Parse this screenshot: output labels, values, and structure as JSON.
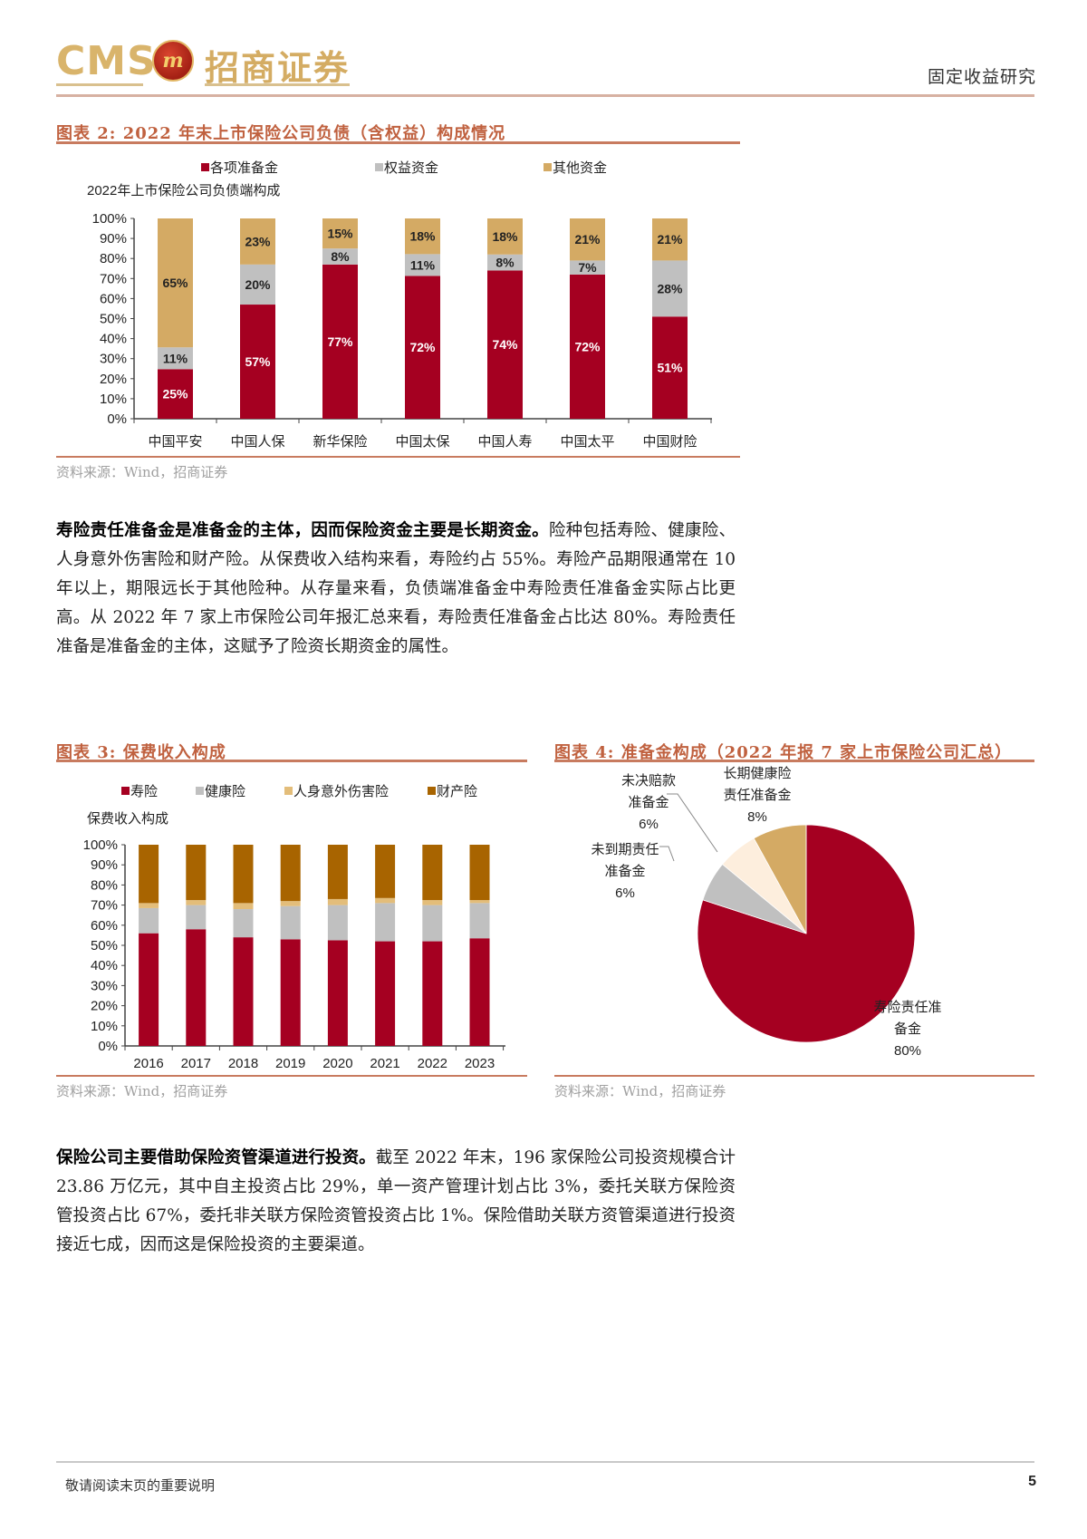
{
  "header": {
    "logo_latin": "CMS",
    "logo_badge": "m",
    "logo_cn": "招商证券",
    "section": "固定收益研究"
  },
  "figure2": {
    "title": "图表 2: 2022 年末上市保险公司负债（含权益）构成情况",
    "source": "资料来源：Wind，招商证券"
  },
  "paragraph1": {
    "lead": "寿险责任准备金是准备金的主体，因而保险资金主要是长期资金。",
    "text": "险种包括寿险、健康险、人身意外伤害险和财产险。从保费收入结构来看，寿险约占 55%。寿险产品期限通常在 10 年以上，期限远长于其他险种。从存量来看，负债端准备金中寿险责任准备金实际占比更高。从 2022 年 7 家上市保险公司年报汇总来看，寿险责任准备金占比达 80%。寿险责任准备是准备金的主体，这赋予了险资长期资金的属性。"
  },
  "figure3": {
    "title": "图表 3: 保费收入构成",
    "source": "资料来源：Wind，招商证券"
  },
  "figure4": {
    "title": "图表 4: 准备金构成（2022 年报 7 家上市保险公司汇总）",
    "source": "资料来源：Wind，招商证券"
  },
  "paragraph2": {
    "lead": "保险公司主要借助保险资管渠道进行投资。",
    "text": "截至 2022 年末，196 家保险公司投资规模合计 23.86 万亿元，其中自主投资占比 29%，单一资产管理计划占比 3%，委托关联方保险资管投资占比 67%，委托非关联方保险资管投资占比 1%。保险借助关联方资管渠道进行投资接近七成，因而这是保险投资的主要渠道。"
  },
  "footer": {
    "disclaimer": "敬请阅读末页的重要说明",
    "page_number": "5"
  },
  "colors": {
    "red": "#a50021",
    "gray": "#c0c0c0",
    "tan": "#d4aa64",
    "light_tan": "#e3bd7a",
    "brown": "#a86400",
    "cream": "#fdeedd",
    "accent": "#c0613f"
  },
  "chart_data": [
    {
      "type": "bar",
      "stacked": true,
      "title": "2022年上市保险公司负债端构成",
      "categories": [
        "中国平安",
        "中国人保",
        "新华保险",
        "中国太保",
        "中国人寿",
        "中国太平",
        "中国财险"
      ],
      "series": [
        {
          "name": "各项准备金",
          "color": "#a50021",
          "values": [
            25,
            57,
            77,
            72,
            74,
            72,
            51
          ]
        },
        {
          "name": "权益资金",
          "color": "#c0c0c0",
          "values": [
            11,
            20,
            8,
            11,
            8,
            7,
            28
          ]
        },
        {
          "name": "其他资金",
          "color": "#d4aa64",
          "values": [
            65,
            23,
            15,
            18,
            18,
            21,
            21
          ]
        }
      ],
      "yticks": [
        "0%",
        "10%",
        "20%",
        "30%",
        "40%",
        "50%",
        "60%",
        "70%",
        "80%",
        "90%",
        "100%"
      ],
      "ylim": [
        0,
        100
      ],
      "legend_position": "top",
      "grid": false
    },
    {
      "type": "bar",
      "stacked": true,
      "title": "保费收入构成",
      "categories": [
        "2016",
        "2017",
        "2018",
        "2019",
        "2020",
        "2021",
        "2022",
        "2023"
      ],
      "series": [
        {
          "name": "寿险",
          "color": "#a50021",
          "values": [
            56,
            58,
            54,
            53,
            52.5,
            52,
            52,
            53.5
          ]
        },
        {
          "name": "健康险",
          "color": "#c0c0c0",
          "values": [
            12.5,
            12,
            14,
            16.5,
            17.5,
            19,
            18,
            17.5
          ]
        },
        {
          "name": "人身意外伤害险",
          "color": "#e3bd7a",
          "values": [
            2.5,
            2.5,
            3,
            2.5,
            3,
            2.5,
            2.5,
            1.5
          ]
        },
        {
          "name": "财产险",
          "color": "#a86400",
          "values": [
            29,
            27.5,
            29,
            28,
            27,
            26.5,
            27.5,
            27.5
          ]
        }
      ],
      "yticks": [
        "0%",
        "10%",
        "20%",
        "30%",
        "40%",
        "50%",
        "60%",
        "70%",
        "80%",
        "90%",
        "100%"
      ],
      "ylim": [
        0,
        100
      ],
      "legend_position": "top",
      "grid": false
    },
    {
      "type": "pie",
      "title": "准备金构成（2022 年报 7 家上市保险公司汇总）",
      "slices": [
        {
          "label": "寿险责任准备金",
          "value": 80,
          "color": "#a50021"
        },
        {
          "label": "未到期责任准备金",
          "value": 6,
          "color": "#c0c0c0"
        },
        {
          "label": "未决赔款准备金",
          "value": 6,
          "color": "#fdeedd"
        },
        {
          "label": "长期健康险责任准备金",
          "value": 8,
          "color": "#d4aa64"
        }
      ]
    }
  ]
}
